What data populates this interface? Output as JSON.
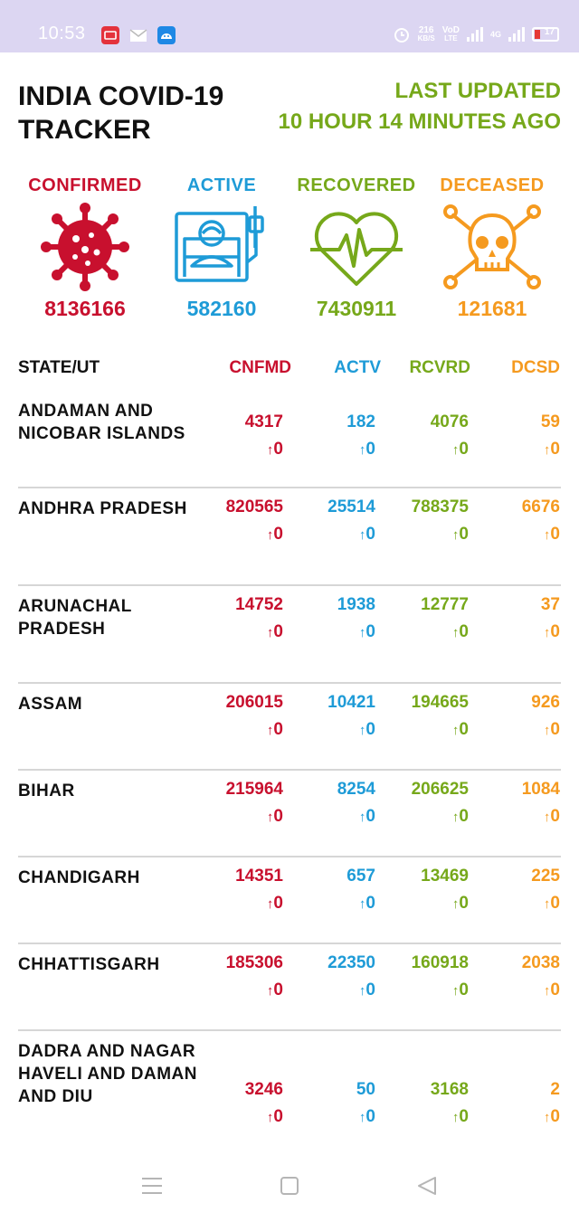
{
  "status_bar": {
    "time": "10:53",
    "net_speed_value": "216",
    "net_speed_unit": "KB/S",
    "volte_top": "VoD",
    "volte_bottom": "LTE",
    "network": "4G",
    "battery": "17"
  },
  "header": {
    "title": "INDIA COVID-19 TRACKER",
    "updated_line1": "LAST UPDATED",
    "updated_line2": "10 HOUR 14 MINUTES AGO"
  },
  "summary": [
    {
      "label": "CONFIRMED",
      "value": "8136166",
      "icon": "virus-icon",
      "color": "#c8102e"
    },
    {
      "label": "ACTIVE",
      "value": "582160",
      "icon": "hospital-bed-icon",
      "color": "#1e9bd7"
    },
    {
      "label": "RECOVERED",
      "value": "7430911",
      "icon": "heartbeat-icon",
      "color": "#76a81a"
    },
    {
      "label": "DECEASED",
      "value": "121681",
      "icon": "skull-crossbones-icon",
      "color": "#f59a1f"
    }
  ],
  "table": {
    "headers": [
      "STATE/UT",
      "CNFMD",
      "ACTV",
      "RCVRD",
      "DCSD"
    ],
    "delta_arrow": "↑",
    "rows": [
      {
        "state": "ANDAMAN AND NICOBAR ISLANDS",
        "cnfmd": "4317",
        "actv": "182",
        "rcvrd": "4076",
        "dcsd": "59",
        "d_cnfmd": "0",
        "d_actv": "0",
        "d_rcvrd": "0",
        "d_dcsd": "0"
      },
      {
        "state": "ANDHRA PRADESH",
        "cnfmd": "820565",
        "actv": "25514",
        "rcvrd": "788375",
        "dcsd": "6676",
        "d_cnfmd": "0",
        "d_actv": "0",
        "d_rcvrd": "0",
        "d_dcsd": "0"
      },
      {
        "state": "ARUNACHAL PRADESH",
        "cnfmd": "14752",
        "actv": "1938",
        "rcvrd": "12777",
        "dcsd": "37",
        "d_cnfmd": "0",
        "d_actv": "0",
        "d_rcvrd": "0",
        "d_dcsd": "0"
      },
      {
        "state": "ASSAM",
        "cnfmd": "206015",
        "actv": "10421",
        "rcvrd": "194665",
        "dcsd": "926",
        "d_cnfmd": "0",
        "d_actv": "0",
        "d_rcvrd": "0",
        "d_dcsd": "0"
      },
      {
        "state": "BIHAR",
        "cnfmd": "215964",
        "actv": "8254",
        "rcvrd": "206625",
        "dcsd": "1084",
        "d_cnfmd": "0",
        "d_actv": "0",
        "d_rcvrd": "0",
        "d_dcsd": "0"
      },
      {
        "state": "CHANDIGARH",
        "cnfmd": "14351",
        "actv": "657",
        "rcvrd": "13469",
        "dcsd": "225",
        "d_cnfmd": "0",
        "d_actv": "0",
        "d_rcvrd": "0",
        "d_dcsd": "0"
      },
      {
        "state": "CHHATTISGARH",
        "cnfmd": "185306",
        "actv": "22350",
        "rcvrd": "160918",
        "dcsd": "2038",
        "d_cnfmd": "0",
        "d_actv": "0",
        "d_rcvrd": "0",
        "d_dcsd": "0"
      },
      {
        "state": "DADRA AND NAGAR HAVELI AND DAMAN AND DIU",
        "cnfmd": "3246",
        "actv": "50",
        "rcvrd": "3168",
        "dcsd": "2",
        "d_cnfmd": "0",
        "d_actv": "0",
        "d_rcvrd": "0",
        "d_dcsd": "0"
      }
    ]
  },
  "nav": {
    "menu": "menu-icon",
    "home": "home-icon",
    "back": "back-icon"
  }
}
